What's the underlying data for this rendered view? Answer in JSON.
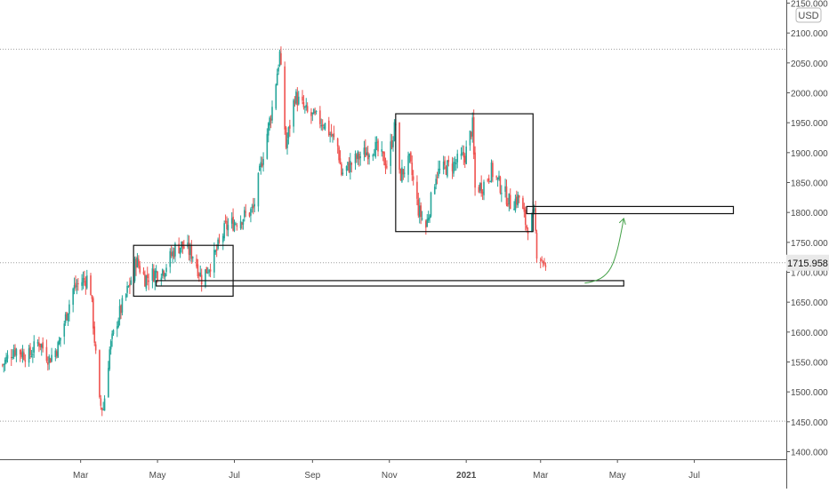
{
  "currency": "USD",
  "last_price_label": "1715.958",
  "colors": {
    "up": "#26a69a",
    "down": "#ef5350",
    "axis_text": "#4a4a4a",
    "gridline": "#9e9e9e",
    "box": "#111111",
    "arrow": "#43a047",
    "badge_bg": "#e9e9e9"
  },
  "chart_data": {
    "type": "candlestick",
    "ylim": [
      1400,
      2150
    ],
    "y_ticks": [
      "1400.000",
      "1450.000",
      "1500.000",
      "1550.000",
      "1600.000",
      "1650.000",
      "1700.000",
      "1750.000",
      "1800.000",
      "1850.000",
      "1900.000",
      "1950.000",
      "2000.000",
      "2050.000",
      "2100.000",
      "2150.000"
    ],
    "x_ticks": [
      "Mar",
      "May",
      "Jul",
      "Sep",
      "Nov",
      "2021",
      "Mar",
      "May",
      "Jul"
    ],
    "x_tick_dates": [
      "2020-03-01",
      "2020-05-01",
      "2020-07-01",
      "2020-09-01",
      "2020-11-01",
      "2021-01-01",
      "2021-03-01",
      "2021-05-01",
      "2021-07-01"
    ],
    "xlim": [
      "2019-12-28",
      "2021-09-12"
    ],
    "series_anchors": [
      [
        "2019-12-30",
        1545
      ],
      [
        "2020-01-08",
        1572
      ],
      [
        "2020-01-20",
        1560
      ],
      [
        "2020-01-28",
        1585
      ],
      [
        "2020-02-05",
        1555
      ],
      [
        "2020-02-12",
        1575
      ],
      [
        "2020-02-20",
        1640
      ],
      [
        "2020-02-24",
        1672
      ],
      [
        "2020-03-02",
        1685
      ],
      [
        "2020-03-06",
        1690
      ],
      [
        "2020-03-09",
        1670
      ],
      [
        "2020-03-13",
        1560
      ],
      [
        "2020-03-16",
        1480
      ],
      [
        "2020-03-19",
        1472
      ],
      [
        "2020-03-24",
        1570
      ],
      [
        "2020-03-30",
        1620
      ],
      [
        "2020-04-09",
        1680
      ],
      [
        "2020-04-14",
        1720
      ],
      [
        "2020-04-21",
        1690
      ],
      [
        "2020-04-30",
        1700
      ],
      [
        "2020-05-06",
        1705
      ],
      [
        "2020-05-15",
        1740
      ],
      [
        "2020-05-20",
        1745
      ],
      [
        "2020-05-29",
        1730
      ],
      [
        "2020-06-05",
        1690
      ],
      [
        "2020-06-15",
        1725
      ],
      [
        "2020-06-24",
        1775
      ],
      [
        "2020-07-06",
        1790
      ],
      [
        "2020-07-16",
        1805
      ],
      [
        "2020-07-24",
        1900
      ],
      [
        "2020-07-31",
        1975
      ],
      [
        "2020-08-06",
        2065
      ],
      [
        "2020-08-11",
        1910
      ],
      [
        "2020-08-18",
        1995
      ],
      [
        "2020-08-28",
        1965
      ],
      [
        "2020-09-10",
        1950
      ],
      [
        "2020-09-21",
        1910
      ],
      [
        "2020-09-24",
        1865
      ],
      [
        "2020-10-06",
        1890
      ],
      [
        "2020-10-20",
        1910
      ],
      [
        "2020-10-30",
        1880
      ],
      [
        "2020-11-06",
        1950
      ],
      [
        "2020-11-09",
        1860
      ],
      [
        "2020-11-17",
        1885
      ],
      [
        "2020-11-24",
        1805
      ],
      [
        "2020-11-30",
        1775
      ],
      [
        "2020-12-08",
        1865
      ],
      [
        "2020-12-16",
        1875
      ],
      [
        "2020-12-22",
        1880
      ],
      [
        "2020-12-31",
        1895
      ],
      [
        "2021-01-06",
        1945
      ],
      [
        "2021-01-08",
        1840
      ],
      [
        "2021-01-14",
        1845
      ],
      [
        "2021-01-21",
        1870
      ],
      [
        "2021-01-28",
        1845
      ],
      [
        "2021-02-05",
        1815
      ],
      [
        "2021-02-12",
        1825
      ],
      [
        "2021-02-18",
        1775
      ],
      [
        "2021-02-24",
        1795
      ],
      [
        "2021-02-26",
        1735
      ],
      [
        "2021-03-03",
        1720
      ],
      [
        "2021-03-05",
        1700
      ]
    ]
  },
  "annotations": {
    "boxes": [
      {
        "name": "consolidation-box-spring",
        "x0": "2020-04-12",
        "x1": "2020-06-30",
        "y0": 1660,
        "y1": 1745
      },
      {
        "name": "consolidation-box-autumn",
        "x0": "2020-11-06",
        "x1": "2021-02-23",
        "y0": 1768,
        "y1": 1965
      },
      {
        "name": "resistance-zone",
        "x0": "2021-02-18",
        "x1": "2021-08-01",
        "y0": 1798,
        "y1": 1810
      },
      {
        "name": "support-zone",
        "x0": "2020-04-30",
        "x1": "2021-05-06",
        "y0": 1677,
        "y1": 1686
      }
    ],
    "hlines": [
      {
        "name": "dotted-high-line",
        "y": 2073
      },
      {
        "name": "dotted-last-price-line",
        "y": 1716
      },
      {
        "name": "dotted-low-line",
        "y": 1451
      }
    ],
    "arrow": {
      "from": [
        "2021-04-05",
        1682
      ],
      "to": [
        "2021-05-06",
        1790
      ]
    }
  }
}
